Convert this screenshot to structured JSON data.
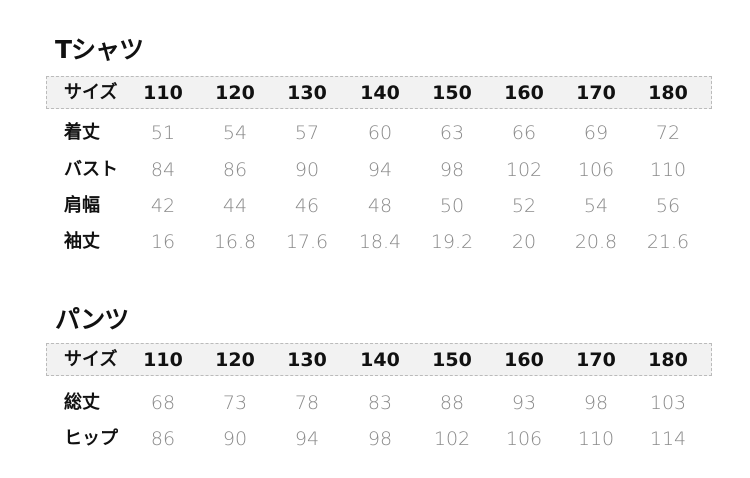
{
  "tshirt": {
    "title": "Tシャツ",
    "header_label": "サイズ",
    "sizes": [
      "110",
      "120",
      "130",
      "140",
      "150",
      "160",
      "170",
      "180"
    ],
    "rows": [
      {
        "label": "着丈",
        "values": [
          "51",
          "54",
          "57",
          "60",
          "63",
          "66",
          "69",
          "72"
        ]
      },
      {
        "label": "バスト",
        "values": [
          "84",
          "86",
          "90",
          "94",
          "98",
          "102",
          "106",
          "110"
        ]
      },
      {
        "label": "肩幅",
        "values": [
          "42",
          "44",
          "46",
          "48",
          "50",
          "52",
          "54",
          "56"
        ]
      },
      {
        "label": "袖丈",
        "values": [
          "16",
          "16.8",
          "17.6",
          "18.4",
          "19.2",
          "20",
          "20.8",
          "21.6"
        ]
      }
    ]
  },
  "pants": {
    "title": "パンツ",
    "header_label": "サイズ",
    "sizes": [
      "110",
      "120",
      "130",
      "140",
      "150",
      "160",
      "170",
      "180"
    ],
    "rows": [
      {
        "label": "総丈",
        "values": [
          "68",
          "73",
          "78",
          "83",
          "88",
          "93",
          "98",
          "103"
        ]
      },
      {
        "label": "ヒップ",
        "values": [
          "86",
          "90",
          "94",
          "98",
          "102",
          "106",
          "110",
          "114"
        ]
      }
    ]
  }
}
